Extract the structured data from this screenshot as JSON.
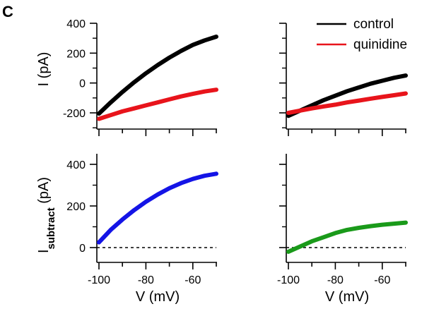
{
  "panel_label": "C",
  "colors": {
    "control": "#000000",
    "quinidine": "#e8141b",
    "subtract_left": "#1414e6",
    "subtract_right": "#1a9a1a"
  },
  "legend": {
    "placement": "top-right",
    "entries": [
      {
        "label": "control",
        "color": "#000000"
      },
      {
        "label": "quinidine",
        "color": "#e8141b"
      }
    ]
  },
  "chart_data": [
    {
      "type": "line",
      "panel": "top-left",
      "title": "",
      "xlabel": "",
      "ylabel": "I (pA)",
      "xlim": [
        -100,
        -50
      ],
      "ylim": [
        -300,
        400
      ],
      "x_ticks": [
        -100,
        -80,
        -60
      ],
      "y_ticks": [
        -200,
        0,
        200,
        400
      ],
      "y_tick_labels": [
        "-200",
        "0",
        "200",
        "400"
      ],
      "series": [
        {
          "name": "control",
          "color": "#000000",
          "x": [
            -100,
            -95,
            -90,
            -85,
            -80,
            -75,
            -70,
            -65,
            -60,
            -55,
            -50
          ],
          "y": [
            -205,
            -130,
            -60,
            5,
            65,
            120,
            170,
            215,
            255,
            285,
            310
          ]
        },
        {
          "name": "quinidine",
          "color": "#e8141b",
          "x": [
            -100,
            -95,
            -90,
            -85,
            -80,
            -75,
            -70,
            -65,
            -60,
            -55,
            -50
          ],
          "y": [
            -240,
            -215,
            -190,
            -170,
            -150,
            -130,
            -110,
            -90,
            -73,
            -57,
            -45
          ]
        }
      ]
    },
    {
      "type": "line",
      "panel": "top-right",
      "title": "",
      "xlabel": "",
      "ylabel": "",
      "xlim": [
        -100,
        -50
      ],
      "ylim": [
        -300,
        400
      ],
      "x_ticks": [
        -100,
        -80,
        -60
      ],
      "y_ticks": [
        -200,
        0,
        200,
        400
      ],
      "series": [
        {
          "name": "control",
          "color": "#000000",
          "x": [
            -100,
            -95,
            -90,
            -85,
            -80,
            -75,
            -70,
            -65,
            -60,
            -55,
            -50
          ],
          "y": [
            -220,
            -185,
            -150,
            -115,
            -85,
            -55,
            -30,
            -5,
            15,
            35,
            50
          ]
        },
        {
          "name": "quinidine",
          "color": "#e8141b",
          "x": [
            -100,
            -95,
            -90,
            -85,
            -80,
            -75,
            -70,
            -65,
            -60,
            -55,
            -50
          ],
          "y": [
            -200,
            -185,
            -170,
            -157,
            -145,
            -130,
            -118,
            -105,
            -93,
            -82,
            -70
          ]
        }
      ]
    },
    {
      "type": "line",
      "panel": "bottom-left",
      "title": "",
      "xlabel": "V (mV)",
      "ylabel": "I",
      "ylabel_subscript": "subtract",
      "ylabel_suffix": " (pA)",
      "xlim": [
        -100,
        -50
      ],
      "ylim": [
        -50,
        450
      ],
      "x_ticks": [
        -100,
        -80,
        -60
      ],
      "x_tick_labels": [
        "-100",
        "-80",
        "-60"
      ],
      "y_ticks": [
        0,
        200,
        400
      ],
      "y_tick_labels": [
        "0",
        "200",
        "400"
      ],
      "zero_line": "dashed",
      "series": [
        {
          "color": "#1414e6",
          "x": [
            -100,
            -95,
            -90,
            -85,
            -80,
            -75,
            -70,
            -65,
            -60,
            -55,
            -50
          ],
          "y": [
            25,
            85,
            135,
            180,
            220,
            255,
            285,
            310,
            330,
            345,
            355
          ]
        }
      ]
    },
    {
      "type": "line",
      "panel": "bottom-right",
      "title": "",
      "xlabel": "V (mV)",
      "ylabel": "",
      "xlim": [
        -100,
        -50
      ],
      "ylim": [
        -50,
        450
      ],
      "x_ticks": [
        -100,
        -80,
        -60
      ],
      "x_tick_labels": [
        "-100",
        "-80",
        "-60"
      ],
      "y_ticks": [
        0,
        200,
        400
      ],
      "zero_line": "dashed",
      "series": [
        {
          "color": "#1a9a1a",
          "x": [
            -100,
            -95,
            -90,
            -85,
            -80,
            -75,
            -70,
            -65,
            -60,
            -55,
            -50
          ],
          "y": [
            -20,
            5,
            30,
            50,
            70,
            85,
            95,
            103,
            110,
            115,
            120
          ]
        }
      ]
    }
  ]
}
